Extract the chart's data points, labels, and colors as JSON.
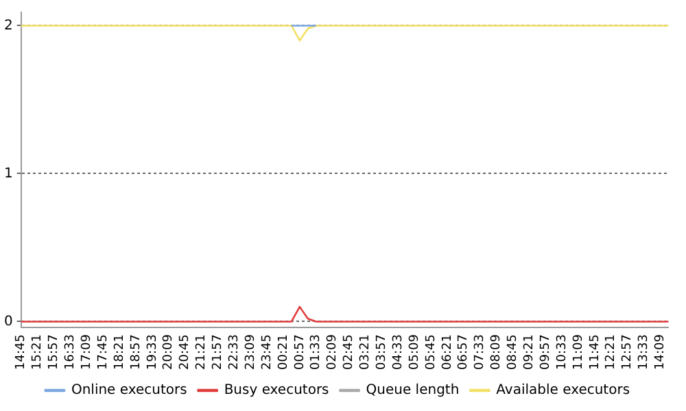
{
  "chart_data": {
    "type": "line",
    "categories": [
      "14:45",
      null,
      "15:21",
      null,
      "15:57",
      null,
      "16:33",
      null,
      "17:09",
      null,
      "17:45",
      null,
      "18:21",
      null,
      "18:57",
      null,
      "19:33",
      null,
      "20:09",
      null,
      "20:45",
      null,
      "21:21",
      null,
      "21:57",
      null,
      "22:33",
      null,
      "23:09",
      null,
      "23:45",
      null,
      "00:21",
      null,
      "00:57",
      null,
      "01:33",
      null,
      "02:09",
      null,
      "02:45",
      null,
      "03:21",
      null,
      "03:57",
      null,
      "04:33",
      null,
      "05:09",
      null,
      "05:45",
      null,
      "06:21",
      null,
      "06:57",
      null,
      "07:33",
      null,
      "08:09",
      null,
      "08:45",
      null,
      "09:21",
      null,
      "09:57",
      null,
      "10:33",
      null,
      "11:09",
      null,
      "11:45",
      null,
      "12:21",
      null,
      "12:57",
      null,
      "13:33",
      null,
      "14:09",
      null
    ],
    "series": [
      {
        "name": "Online executors",
        "color": "#7ba7e0",
        "values": [
          null,
          null,
          null,
          null,
          null,
          null,
          null,
          null,
          null,
          null,
          null,
          null,
          null,
          null,
          null,
          null,
          null,
          null,
          null,
          null,
          null,
          null,
          null,
          null,
          null,
          null,
          null,
          null,
          null,
          null,
          null,
          null,
          null,
          2,
          2,
          2,
          2,
          null,
          null,
          null,
          null,
          null,
          null,
          null,
          null,
          null,
          null,
          null,
          null,
          null,
          null,
          null,
          null,
          null,
          null,
          null,
          null,
          null,
          null,
          null,
          null,
          null,
          null,
          null,
          null,
          null,
          null,
          null,
          null,
          null,
          null,
          null,
          null,
          null,
          null,
          null,
          null,
          null,
          null,
          null
        ]
      },
      {
        "name": "Busy executors",
        "color": "#e03c3c",
        "values": [
          0,
          0,
          0,
          0,
          0,
          0,
          0,
          0,
          0,
          0,
          0,
          0,
          0,
          0,
          0,
          0,
          0,
          0,
          0,
          0,
          0,
          0,
          0,
          0,
          0,
          0,
          0,
          0,
          0,
          0,
          0,
          0,
          0,
          0,
          0.1,
          0.02,
          0,
          0,
          0,
          0,
          0,
          0,
          0,
          0,
          0,
          0,
          0,
          0,
          0,
          0,
          0,
          0,
          0,
          0,
          0,
          0,
          0,
          0,
          0,
          0,
          0,
          0,
          0,
          0,
          0,
          0,
          0,
          0,
          0,
          0,
          0,
          0,
          0,
          0,
          0,
          0,
          0,
          0,
          0,
          0
        ]
      },
      {
        "name": "Queue length",
        "color": "#a8a8a8",
        "values": [
          null,
          null,
          null,
          null,
          null,
          null,
          null,
          null,
          null,
          null,
          null,
          null,
          null,
          null,
          null,
          null,
          null,
          null,
          null,
          null,
          null,
          null,
          null,
          null,
          null,
          null,
          null,
          null,
          null,
          null,
          null,
          null,
          null,
          null,
          null,
          null,
          null,
          null,
          null,
          null,
          null,
          null,
          null,
          null,
          null,
          null,
          null,
          null,
          null,
          null,
          null,
          null,
          null,
          null,
          null,
          null,
          null,
          null,
          null,
          null,
          null,
          null,
          null,
          null,
          null,
          null,
          null,
          null,
          null,
          null,
          null,
          null,
          null,
          null,
          null,
          null,
          null,
          null,
          null,
          null
        ]
      },
      {
        "name": "Available executors",
        "color": "#f2e064",
        "values": [
          2,
          2,
          2,
          2,
          2,
          2,
          2,
          2,
          2,
          2,
          2,
          2,
          2,
          2,
          2,
          2,
          2,
          2,
          2,
          2,
          2,
          2,
          2,
          2,
          2,
          2,
          2,
          2,
          2,
          2,
          2,
          2,
          2,
          2,
          1.9,
          1.98,
          2,
          2,
          2,
          2,
          2,
          2,
          2,
          2,
          2,
          2,
          2,
          2,
          2,
          2,
          2,
          2,
          2,
          2,
          2,
          2,
          2,
          2,
          2,
          2,
          2,
          2,
          2,
          2,
          2,
          2,
          2,
          2,
          2,
          2,
          2,
          2,
          2,
          2,
          2,
          2,
          2,
          2,
          2,
          2
        ]
      }
    ],
    "ylim": [
      -0.04,
      2.09
    ],
    "yticks": [
      0,
      1,
      2
    ],
    "grid": "y",
    "legend": "bottom",
    "marker": "none",
    "line_style": "solid"
  }
}
